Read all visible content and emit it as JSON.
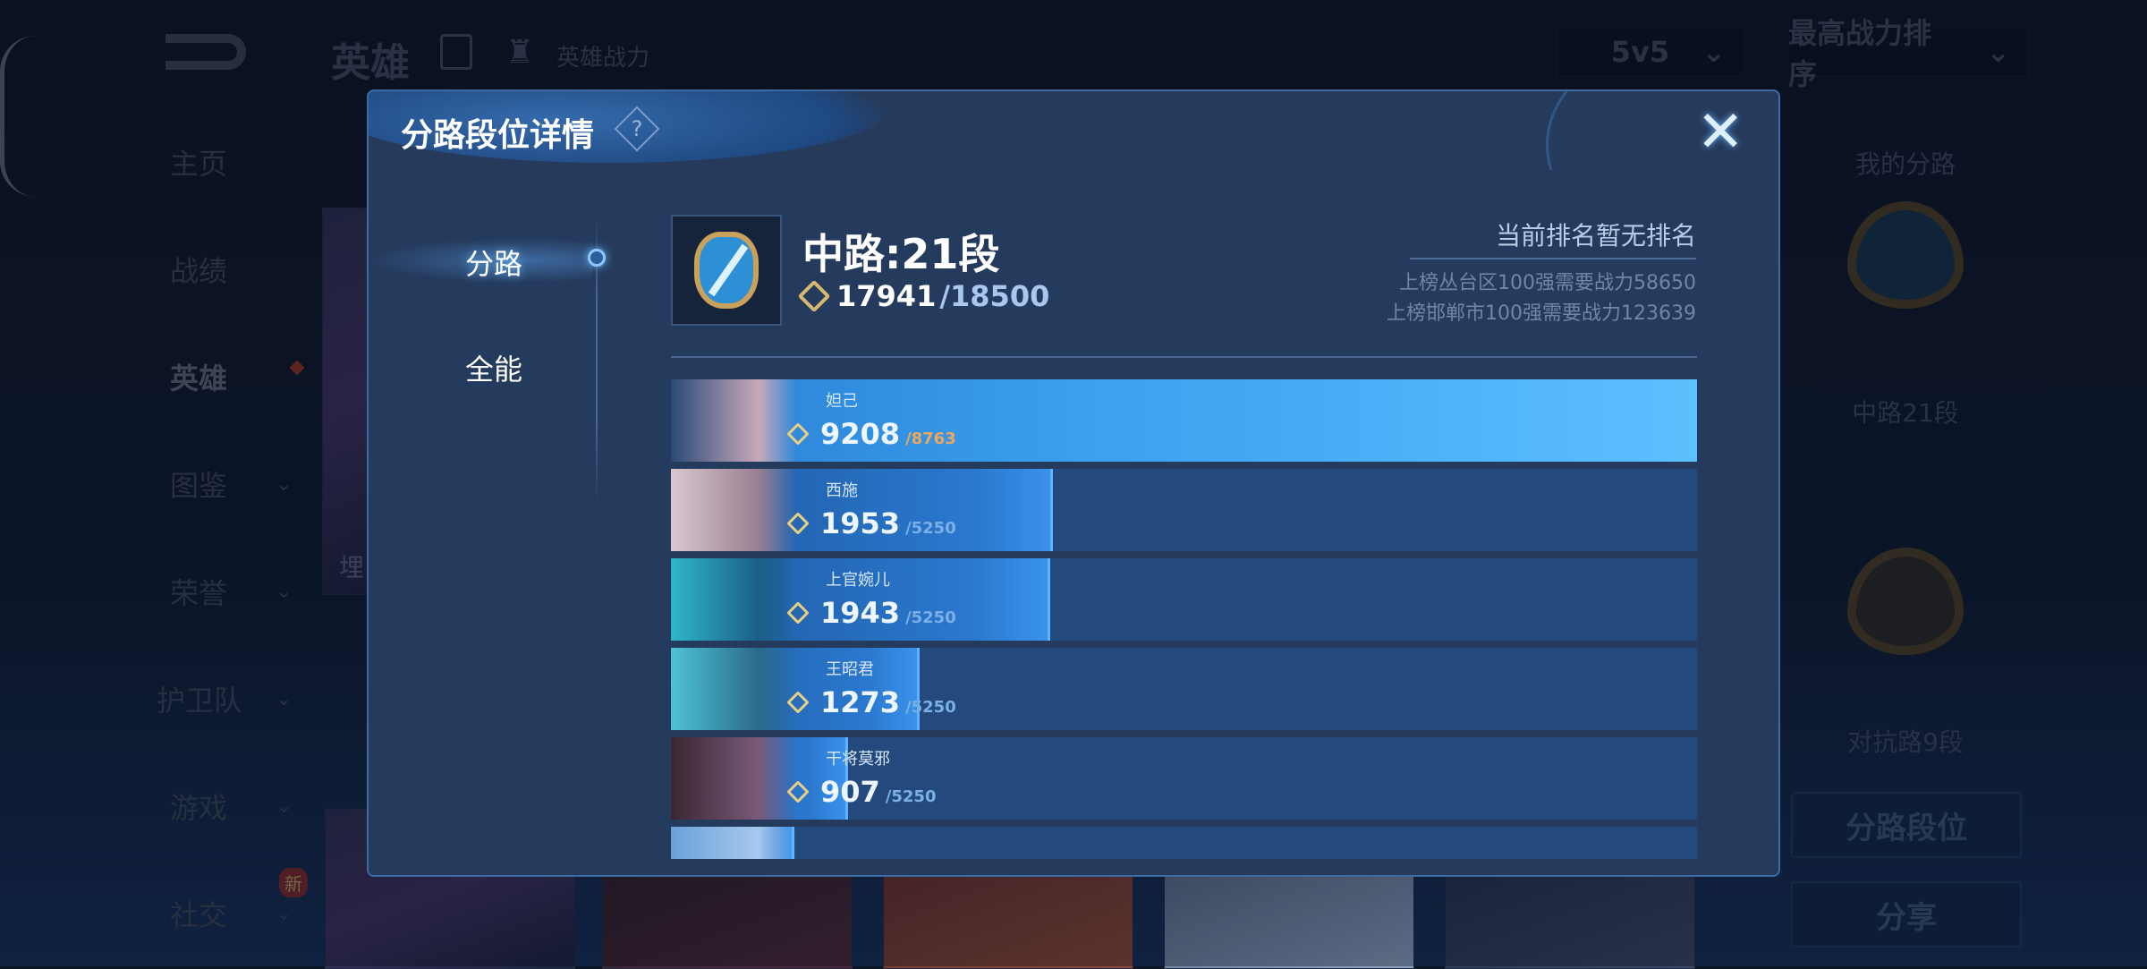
{
  "background_app": {
    "header": {
      "title": "英雄",
      "sub_title": "英雄战力",
      "list_icon": "list-icon",
      "hero_icon": "hero-helmet-icon",
      "back_icon": "back-icon"
    },
    "mode_dropdown": {
      "value": "5v5"
    },
    "sort_dropdown": {
      "value": "最高战力排序"
    },
    "nav": [
      {
        "label": "主页",
        "chevron": false
      },
      {
        "label": "战绩",
        "chevron": false
      },
      {
        "label": "英雄",
        "chevron": false,
        "selected": true
      },
      {
        "label": "图鉴",
        "chevron": true
      },
      {
        "label": "荣誉",
        "chevron": true,
        "dot": true
      },
      {
        "label": "护卫队",
        "chevron": true
      },
      {
        "label": "游戏",
        "chevron": true
      },
      {
        "label": "社交",
        "chevron": true,
        "badge": "新"
      }
    ],
    "card_partial_text": "埋",
    "right_panel": {
      "title": "我的分路",
      "lanes": [
        {
          "label": "中路21段"
        },
        {
          "label": "对抗路9段"
        }
      ],
      "lane_rank_button": "分路段位",
      "share_button": "分享"
    }
  },
  "modal": {
    "title": "分路段位详情",
    "help_icon": "?",
    "close_icon": "close-icon",
    "tabs": [
      {
        "label": "分路",
        "active": true
      },
      {
        "label": "全能",
        "active": false
      }
    ],
    "lane": {
      "name": "中路:21段",
      "points": "17941",
      "target": "/18500",
      "rank_status": "当前排名暂无排名",
      "requirements": [
        "上榜丛台区100强需要战力58650",
        "上榜邯郸市100强需要战力123639"
      ]
    },
    "heroes": [
      {
        "name": "妲己",
        "power": "9208",
        "target": "/8763",
        "fill": 1.0,
        "colors": [
          "#2a4a78",
          "#c9a9b8"
        ]
      },
      {
        "name": "西施",
        "power": "1953",
        "target": "/5250",
        "fill": 0.372,
        "colors": [
          "#d9c7cf",
          "#9a7f90"
        ]
      },
      {
        "name": "上官婉儿",
        "power": "1943",
        "target": "/5250",
        "fill": 0.37,
        "colors": [
          "#2fb6c8",
          "#1c5f86"
        ]
      },
      {
        "name": "王昭君",
        "power": "1273",
        "target": "/5250",
        "fill": 0.242,
        "colors": [
          "#4ec2d6",
          "#2b6a8a"
        ]
      },
      {
        "name": "干将莫邪",
        "power": "907",
        "target": "/5250",
        "fill": 0.173,
        "colors": [
          "#3a2632",
          "#7a5a78"
        ]
      },
      {
        "name": "",
        "power": "",
        "target": "",
        "fill": 0.12,
        "colors": [
          "#6aa2d8",
          "#a8c8ee"
        ]
      }
    ],
    "accent": "#3aa0ef",
    "gold": "#d7b96e"
  }
}
